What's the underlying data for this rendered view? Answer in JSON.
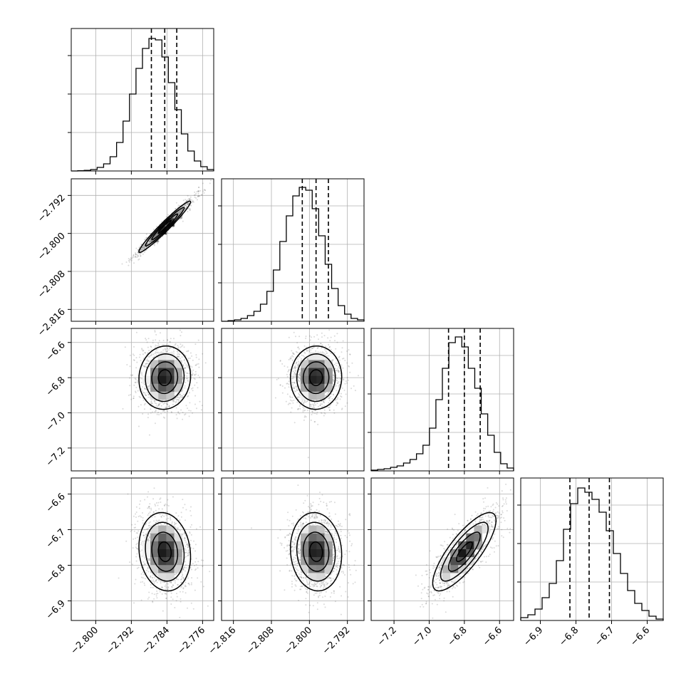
{
  "chart_data": {
    "type": "corner",
    "grid": true,
    "parameters": [
      {
        "range": [
          -2.8055,
          -2.7735
        ],
        "ticks": [
          -2.8,
          -2.792,
          -2.784,
          -2.776
        ],
        "tick_labels": [
          "−2.800",
          "−2.792",
          "−2.784",
          "−2.776"
        ],
        "quantiles": [
          -2.7875,
          -2.7845,
          -2.7818
        ],
        "histogram": [
          0,
          0.002,
          0.004,
          0.01,
          0.025,
          0.05,
          0.1,
          0.2,
          0.35,
          0.54,
          0.72,
          0.86,
          0.93,
          0.92,
          0.8,
          0.62,
          0.43,
          0.26,
          0.14,
          0.07,
          0.03,
          0.01
        ],
        "center": -2.7845,
        "sd": 0.0029
      },
      {
        "range": [
          -2.8185,
          -2.7885
        ],
        "ticks": [
          -2.816,
          -2.808,
          -2.8,
          -2.792
        ],
        "tick_labels": [
          "−2.816",
          "−2.808",
          "−2.800",
          "−2.792"
        ],
        "quantiles": [
          -2.8015,
          -2.7986,
          -2.796
        ],
        "histogram": [
          0,
          0.004,
          0.01,
          0.02,
          0.04,
          0.07,
          0.12,
          0.21,
          0.36,
          0.56,
          0.74,
          0.88,
          0.94,
          0.92,
          0.79,
          0.6,
          0.4,
          0.23,
          0.11,
          0.05,
          0.02,
          0.01
        ],
        "center": -2.7986,
        "sd": 0.0027
      },
      {
        "range": [
          -7.33,
          -6.52
        ],
        "ticks": [
          -7.2,
          -7.0,
          -6.8,
          -6.6
        ],
        "tick_labels": [
          "−7.2",
          "−7.0",
          "−6.8",
          "−6.6"
        ],
        "quantiles": [
          -6.89,
          -6.8,
          -6.71
        ],
        "histogram": [
          0.005,
          0.01,
          0.015,
          0.025,
          0.035,
          0.055,
          0.08,
          0.12,
          0.18,
          0.3,
          0.5,
          0.72,
          0.9,
          0.94,
          0.87,
          0.72,
          0.58,
          0.4,
          0.25,
          0.13,
          0.05,
          0.02
        ],
        "center": -6.8,
        "sd": 0.09
      },
      {
        "range": [
          -6.955,
          -6.555
        ],
        "ticks": [
          -6.9,
          -6.8,
          -6.7,
          -6.6
        ],
        "tick_labels": [
          "−6.9",
          "−6.8",
          "−6.7",
          "−6.6"
        ],
        "quantiles": [
          -6.817,
          -6.763,
          -6.706
        ],
        "histogram": [
          0.02,
          0.04,
          0.08,
          0.16,
          0.26,
          0.42,
          0.64,
          0.82,
          0.93,
          0.9,
          0.85,
          0.76,
          0.63,
          0.47,
          0.33,
          0.21,
          0.12,
          0.07,
          0.03,
          0.01
        ],
        "center": -6.762,
        "sd": 0.055
      }
    ],
    "correlations": {
      "1-0": 0.97,
      "2-0": 0.05,
      "2-1": 0.02,
      "3-0": -0.12,
      "3-1": -0.08,
      "3-2": 0.8
    },
    "contour_levels": [
      0.5,
      1.0,
      1.5,
      2.0
    ]
  }
}
